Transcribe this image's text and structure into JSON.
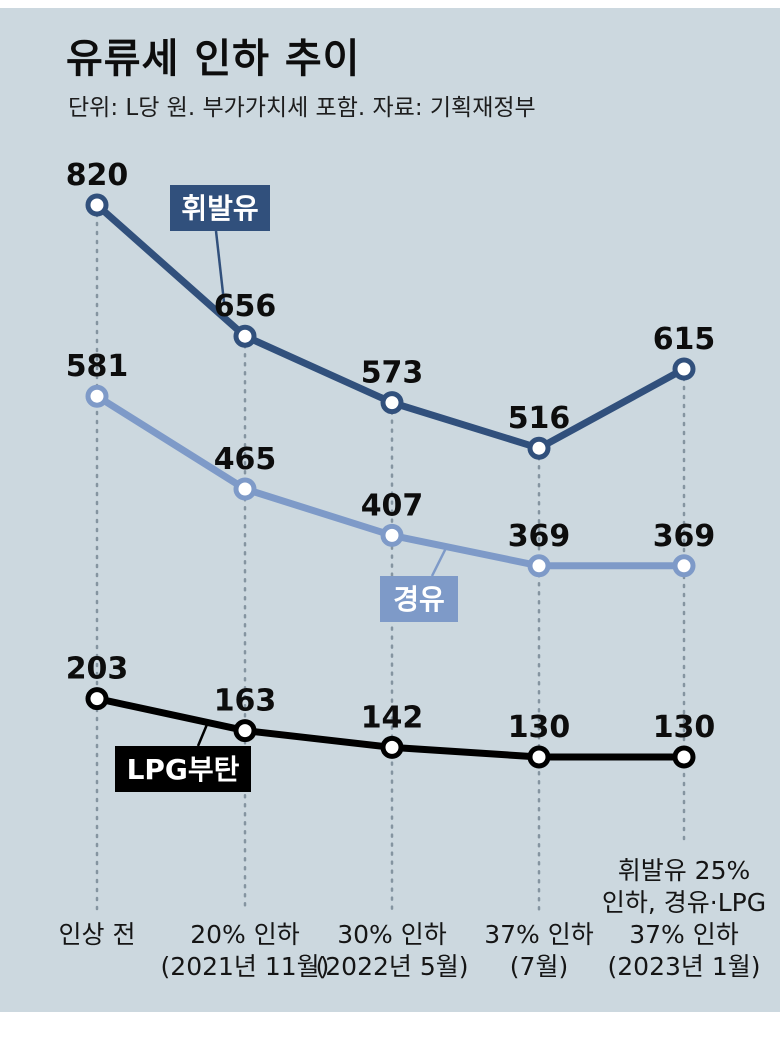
{
  "title": "유류세 인하 추이",
  "subtitle": "단위: L당 원. 부가가치세 포함. 자료: 기획재정부",
  "colors": {
    "background": "#ccd8df",
    "gasoline": "#31507c",
    "diesel": "#7e9ac8",
    "lpg": "#000000",
    "point_fill": "#ffffff",
    "value_label": "#0d0d0d",
    "axis_label": "#151515",
    "grid_dot": "#8494a0",
    "series_label_text": "#ffffff"
  },
  "chart_data": {
    "type": "line",
    "title": "유류세 인하 추이",
    "unit_note": "단위: L당 원. 부가가치세 포함.",
    "source": "자료: 기획재정부",
    "categories": [
      [
        "인상 전"
      ],
      [
        "20% 인하",
        "(2021년 11월)"
      ],
      [
        "30% 인하",
        "(2022년 5월)"
      ],
      [
        "37% 인하",
        "(7월)"
      ],
      [
        "휘발유 25%",
        "인하, 경유·LPG",
        "37% 인하",
        "(2023년 1월)"
      ]
    ],
    "series": [
      {
        "name": "휘발유",
        "color": "#31507c",
        "values": [
          820,
          656,
          573,
          516,
          615
        ]
      },
      {
        "name": "경유",
        "color": "#7e9ac8",
        "values": [
          581,
          465,
          407,
          369,
          369
        ]
      },
      {
        "name": "LPG부탄",
        "color": "#000000",
        "values": [
          203,
          163,
          142,
          130,
          130
        ]
      }
    ],
    "ylim": [
      0,
      900
    ],
    "grid": "vertical-dotted",
    "legend_position": "inline-boxes"
  }
}
